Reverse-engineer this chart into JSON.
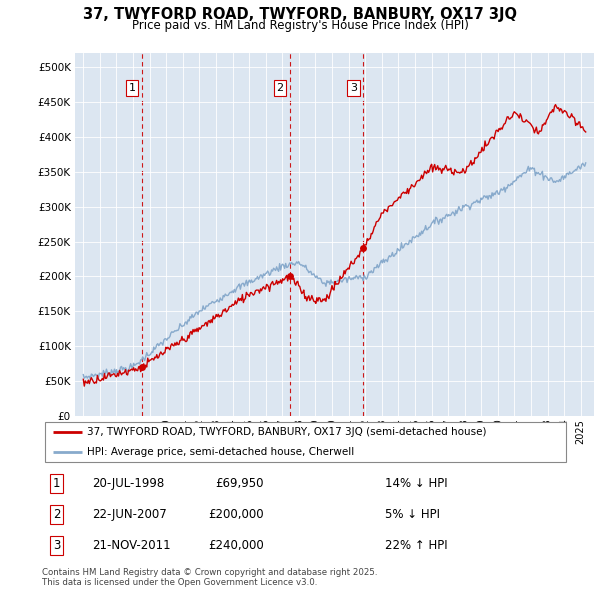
{
  "title": "37, TWYFORD ROAD, TWYFORD, BANBURY, OX17 3JQ",
  "subtitle": "Price paid vs. HM Land Registry's House Price Index (HPI)",
  "sale_label": "37, TWYFORD ROAD, TWYFORD, BANBURY, OX17 3JQ (semi-detached house)",
  "hpi_label": "HPI: Average price, semi-detached house, Cherwell",
  "footer": "Contains HM Land Registry data © Crown copyright and database right 2025.\nThis data is licensed under the Open Government Licence v3.0.",
  "transactions": [
    {
      "num": 1,
      "date": "20-JUL-1998",
      "price": 69950,
      "price_str": "£69,950",
      "pct": "14%",
      "dir": "↓",
      "year": 1998.55
    },
    {
      "num": 2,
      "date": "22-JUN-2007",
      "price": 200000,
      "price_str": "£200,000",
      "pct": "5%",
      "dir": "↓",
      "year": 2007.47
    },
    {
      "num": 3,
      "date": "21-NOV-2011",
      "price": 240000,
      "price_str": "£240,000",
      "pct": "22%",
      "dir": "↑",
      "year": 2011.89
    }
  ],
  "price_color": "#cc0000",
  "hpi_color": "#88aacc",
  "vline_color": "#cc0000",
  "plot_bg": "#dce6f1",
  "ylim": [
    0,
    520000
  ],
  "xlim_start": 1994.5,
  "xlim_end": 2025.8
}
